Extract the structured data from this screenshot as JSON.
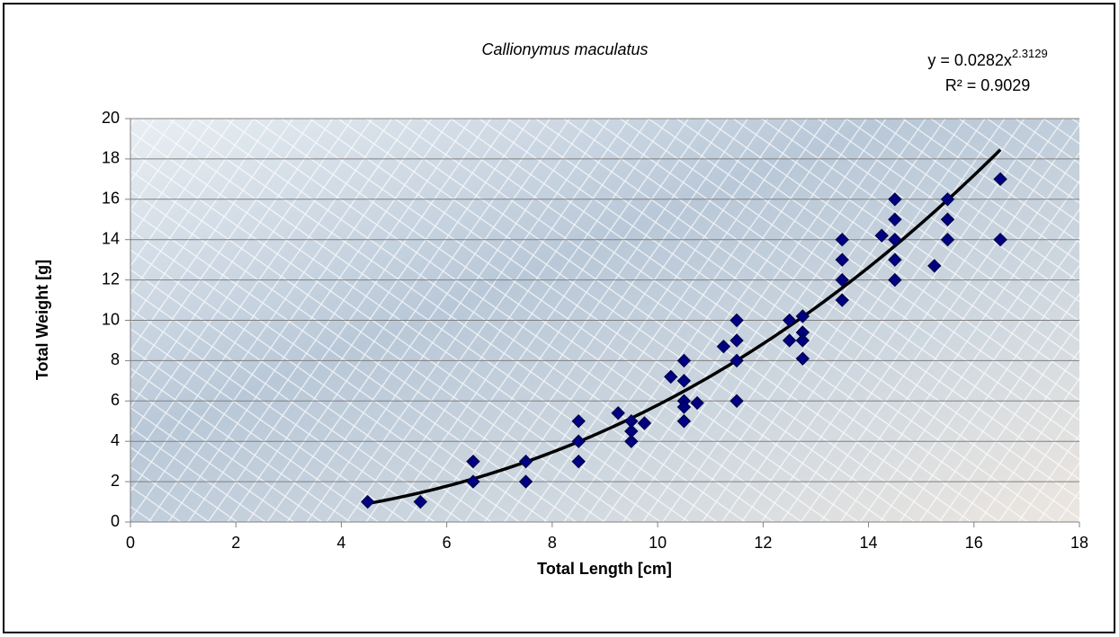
{
  "chart_data": {
    "type": "scatter",
    "title": "Callionymus maculatus",
    "x_label": "Total Length [cm]",
    "y_label": "Total Weight [g]",
    "x": [
      4.5,
      5.5,
      6.5,
      6.5,
      7.5,
      7.5,
      8.5,
      8.5,
      8.5,
      9.25,
      9.5,
      9.5,
      9.5,
      9.75,
      10.25,
      10.5,
      10.5,
      10.5,
      10.5,
      10.5,
      10.75,
      11.25,
      11.5,
      11.5,
      11.5,
      11.5,
      12.5,
      12.5,
      12.75,
      12.75,
      12.75,
      12.75,
      13.5,
      13.5,
      13.5,
      13.5,
      14.25,
      14.5,
      14.5,
      14.5,
      14.5,
      14.5,
      15.25,
      15.5,
      15.5,
      15.5,
      16.5,
      16.5
    ],
    "values": [
      1,
      1,
      3,
      2,
      3,
      2,
      5,
      4,
      3,
      5.4,
      5,
      4.5,
      4,
      4.9,
      7.2,
      8,
      7,
      6,
      5.7,
      5,
      5.9,
      8.7,
      10,
      9,
      8,
      6,
      10,
      9,
      10.2,
      9.4,
      9,
      8.1,
      14,
      13,
      12,
      11,
      14.2,
      16,
      15,
      14,
      13,
      12,
      12.7,
      16,
      15,
      14,
      17,
      14
    ],
    "color": "#000080",
    "trendline": {
      "type": "power",
      "coefficient": 0.0282,
      "exponent": 2.3129,
      "color": "#000000",
      "equation": "y = 0.0282x",
      "equation_exponent": "2.3129",
      "r_squared": "R² = 0.9029"
    },
    "xlim": [
      0,
      18
    ],
    "xticks": [
      0,
      2,
      4,
      6,
      8,
      10,
      12,
      14,
      16,
      18
    ],
    "ylim": [
      0,
      20
    ],
    "yticks": [
      0,
      2,
      4,
      6,
      8,
      10,
      12,
      14,
      16,
      18,
      20
    ],
    "grid": true
  }
}
